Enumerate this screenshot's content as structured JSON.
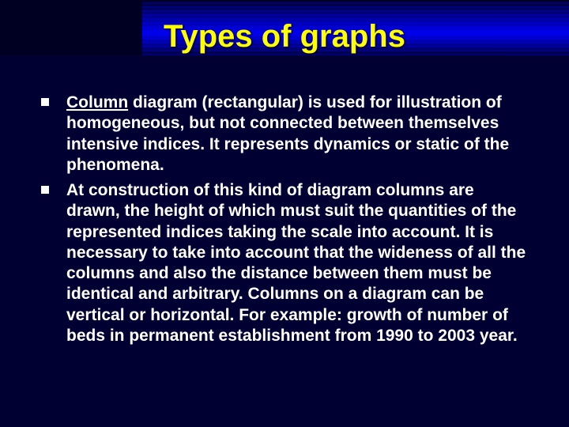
{
  "slide": {
    "title": "Types of graphs",
    "title_color": "#ffff00",
    "title_fontsize": 40,
    "body_color": "#ffffff",
    "body_fontsize": 21,
    "background_color": "#000033",
    "bullet_marker_color": "#ffffff",
    "bullets": [
      {
        "underlined_lead": "Column",
        "rest": " diagram (rectangular) is used for illustration of homogeneous, but not connected between themselves intensive indices. It represents dynamics or static of the phenomena."
      },
      {
        "underlined_lead": "",
        "rest": "At construction of this kind of diagram columns are drawn, the height of which must suit the quantities of the represented indices taking the scale into account. It is necessary to take into account that the wideness of all the columns and also the distance between them must be identical and arbitrary. Columns on a diagram can be vertical or horizontal. For example: growth of number of beds in permanent establishment from 1990 to 2003 year."
      }
    ]
  }
}
